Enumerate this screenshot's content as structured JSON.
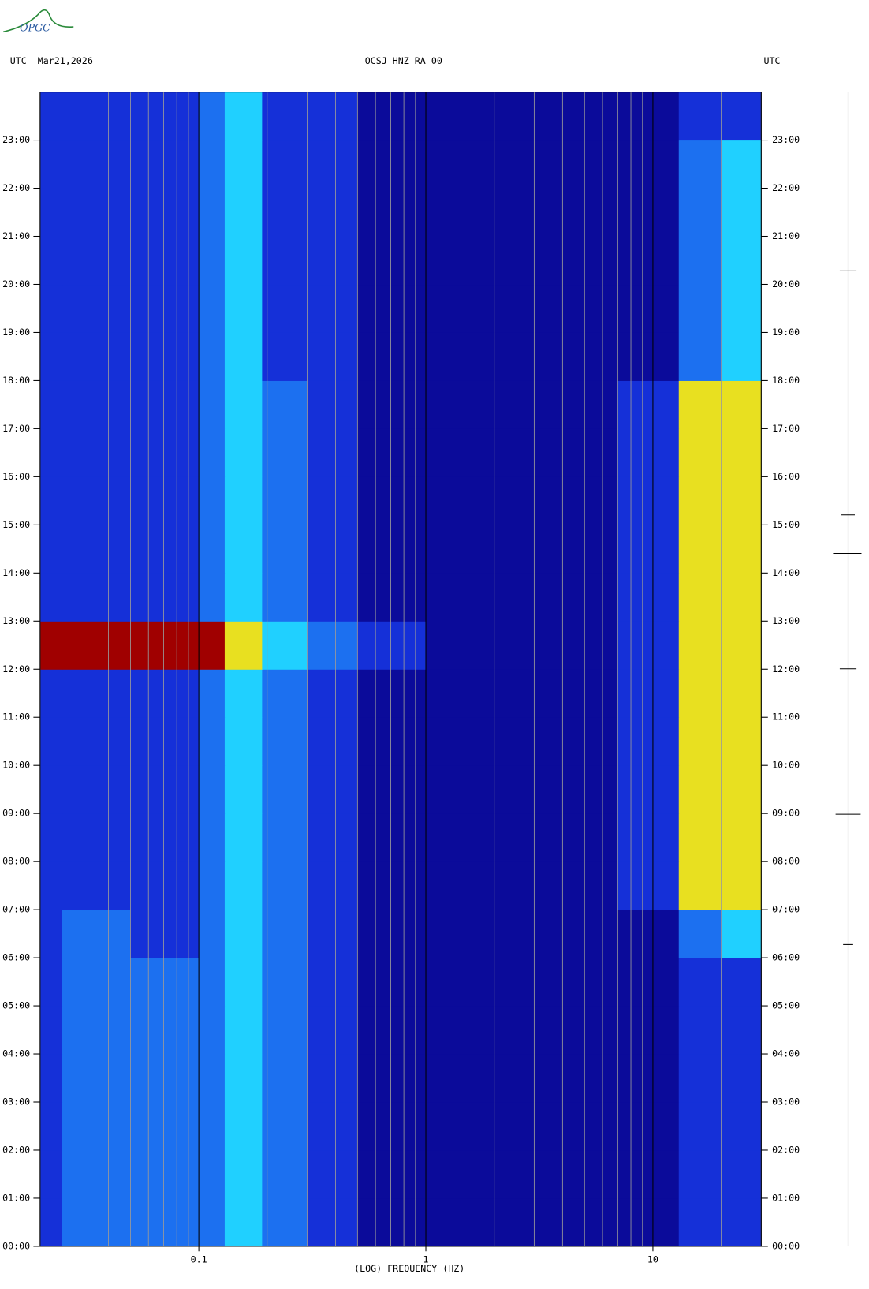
{
  "logo": "OPGC",
  "chart_data": {
    "type": "spectrogram",
    "title": "OCSJ HNZ RA 00",
    "left_header": "UTC  Mar21,2026",
    "right_header": "UTC",
    "xlabel": "(LOG) FREQUENCY (HZ)",
    "xscale": "log",
    "xlim": [
      0.02,
      30
    ],
    "xticks": [
      0.1,
      1,
      10
    ],
    "xminorticks": [
      0.02,
      0.03,
      0.04,
      0.05,
      0.06,
      0.07,
      0.08,
      0.09,
      0.2,
      0.3,
      0.4,
      0.5,
      0.6,
      0.7,
      0.8,
      0.9,
      2,
      3,
      4,
      5,
      6,
      7,
      8,
      9,
      20,
      30
    ],
    "ylim": [
      0,
      24
    ],
    "yticks": [
      {
        "value": 0,
        "label": "00:00"
      },
      {
        "value": 1,
        "label": "01:00"
      },
      {
        "value": 2,
        "label": "02:00"
      },
      {
        "value": 3,
        "label": "03:00"
      },
      {
        "value": 4,
        "label": "04:00"
      },
      {
        "value": 5,
        "label": "05:00"
      },
      {
        "value": 6,
        "label": "06:00"
      },
      {
        "value": 7,
        "label": "07:00"
      },
      {
        "value": 8,
        "label": "08:00"
      },
      {
        "value": 9,
        "label": "09:00"
      },
      {
        "value": 10,
        "label": "10:00"
      },
      {
        "value": 11,
        "label": "11:00"
      },
      {
        "value": 12,
        "label": "12:00"
      },
      {
        "value": 13,
        "label": "13:00"
      },
      {
        "value": 14,
        "label": "14:00"
      },
      {
        "value": 15,
        "label": "15:00"
      },
      {
        "value": 16,
        "label": "16:00"
      },
      {
        "value": 17,
        "label": "17:00"
      },
      {
        "value": 18,
        "label": "18:00"
      },
      {
        "value": 19,
        "label": "19:00"
      },
      {
        "value": 20,
        "label": "20:00"
      },
      {
        "value": 21,
        "label": "21:00"
      },
      {
        "value": 22,
        "label": "22:00"
      },
      {
        "value": 23,
        "label": "23:00"
      }
    ],
    "freq_bins": [
      0.02,
      0.025,
      0.05,
      0.1,
      0.13,
      0.19,
      0.3,
      0.5,
      1,
      7,
      13,
      20,
      30
    ],
    "hour_bins": [
      0,
      1,
      2,
      3,
      4,
      5,
      6,
      7,
      8,
      9,
      10,
      11,
      12,
      13,
      14,
      15,
      16,
      17,
      18,
      19,
      20,
      21,
      22,
      23,
      24
    ],
    "colorscale": [
      "#0b0b9a",
      "#1530d8",
      "#1c70f0",
      "#20d0ff",
      "#e8e020",
      "#a00000"
    ],
    "levels": [
      [
        1,
        2,
        2,
        2,
        3,
        2,
        1,
        0,
        0,
        0,
        1,
        1
      ],
      [
        1,
        2,
        2,
        2,
        3,
        2,
        1,
        0,
        0,
        0,
        1,
        1
      ],
      [
        1,
        2,
        2,
        2,
        3,
        2,
        1,
        0,
        0,
        0,
        1,
        1
      ],
      [
        1,
        2,
        2,
        2,
        3,
        2,
        1,
        0,
        0,
        0,
        1,
        1
      ],
      [
        1,
        2,
        2,
        2,
        3,
        2,
        1,
        0,
        0,
        0,
        1,
        1
      ],
      [
        1,
        2,
        2,
        2,
        3,
        2,
        1,
        0,
        0,
        0,
        1,
        1
      ],
      [
        1,
        2,
        1,
        2,
        3,
        2,
        1,
        0,
        0,
        0,
        2,
        3
      ],
      [
        1,
        1,
        1,
        2,
        3,
        2,
        1,
        0,
        0,
        1,
        4,
        4
      ],
      [
        1,
        1,
        1,
        2,
        3,
        2,
        1,
        0,
        0,
        1,
        4,
        4
      ],
      [
        1,
        1,
        1,
        2,
        3,
        2,
        1,
        0,
        0,
        1,
        4,
        4
      ],
      [
        1,
        1,
        1,
        2,
        3,
        2,
        1,
        0,
        0,
        1,
        4,
        4
      ],
      [
        1,
        1,
        1,
        2,
        3,
        2,
        1,
        0,
        0,
        1,
        4,
        4
      ],
      [
        5,
        5,
        5,
        5,
        4,
        3,
        2,
        1,
        0,
        1,
        4,
        4
      ],
      [
        1,
        1,
        1,
        2,
        3,
        2,
        1,
        0,
        0,
        1,
        4,
        4
      ],
      [
        1,
        1,
        1,
        2,
        3,
        2,
        1,
        0,
        0,
        1,
        4,
        4
      ],
      [
        1,
        1,
        1,
        2,
        3,
        2,
        1,
        0,
        0,
        1,
        4,
        4
      ],
      [
        1,
        1,
        1,
        2,
        3,
        2,
        1,
        0,
        0,
        1,
        4,
        4
      ],
      [
        1,
        1,
        1,
        2,
        3,
        2,
        1,
        0,
        0,
        1,
        4,
        4
      ],
      [
        1,
        1,
        1,
        2,
        3,
        1,
        1,
        0,
        0,
        0,
        2,
        3
      ],
      [
        1,
        1,
        1,
        2,
        3,
        1,
        1,
        0,
        0,
        0,
        2,
        3
      ],
      [
        1,
        1,
        1,
        2,
        3,
        1,
        1,
        0,
        0,
        0,
        2,
        3
      ],
      [
        1,
        1,
        1,
        2,
        3,
        1,
        1,
        0,
        0,
        0,
        2,
        3
      ],
      [
        1,
        1,
        1,
        2,
        3,
        1,
        1,
        0,
        0,
        0,
        2,
        3
      ],
      [
        1,
        1,
        1,
        2,
        3,
        1,
        1,
        0,
        0,
        0,
        1,
        1
      ]
    ]
  }
}
